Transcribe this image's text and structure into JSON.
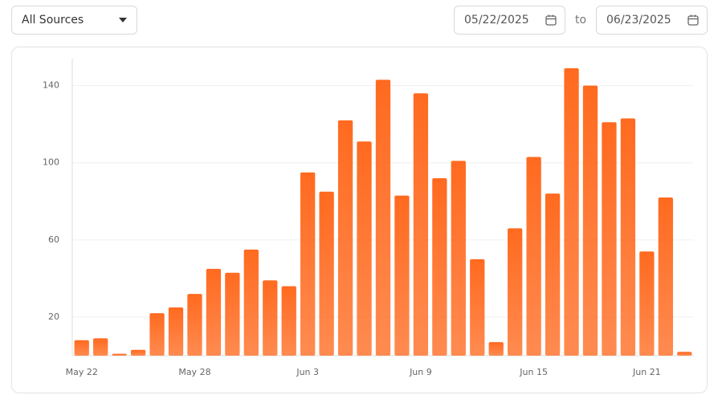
{
  "filter": {
    "source": "All Sources"
  },
  "date_range": {
    "start": "05/22/2025",
    "separator": "to",
    "end": "06/23/2025"
  },
  "chart_data": {
    "type": "bar",
    "color": "#ff6a1f",
    "categories": [
      "May 22",
      null,
      null,
      null,
      null,
      null,
      "May 28",
      null,
      null,
      null,
      null,
      null,
      "Jun 3",
      null,
      null,
      null,
      null,
      null,
      "Jun 9",
      null,
      null,
      null,
      null,
      null,
      "Jun 15",
      null,
      null,
      null,
      null,
      null,
      "Jun 21",
      null,
      null
    ],
    "values": [
      8,
      9,
      1,
      3,
      22,
      25,
      32,
      45,
      43,
      55,
      39,
      36,
      95,
      85,
      122,
      111,
      143,
      83,
      136,
      92,
      101,
      50,
      7,
      66,
      103,
      84,
      149,
      140,
      121,
      123,
      54,
      82,
      2
    ],
    "ylim": [
      0,
      154
    ],
    "yticks": [
      20,
      60,
      100,
      140
    ],
    "grid": true
  }
}
